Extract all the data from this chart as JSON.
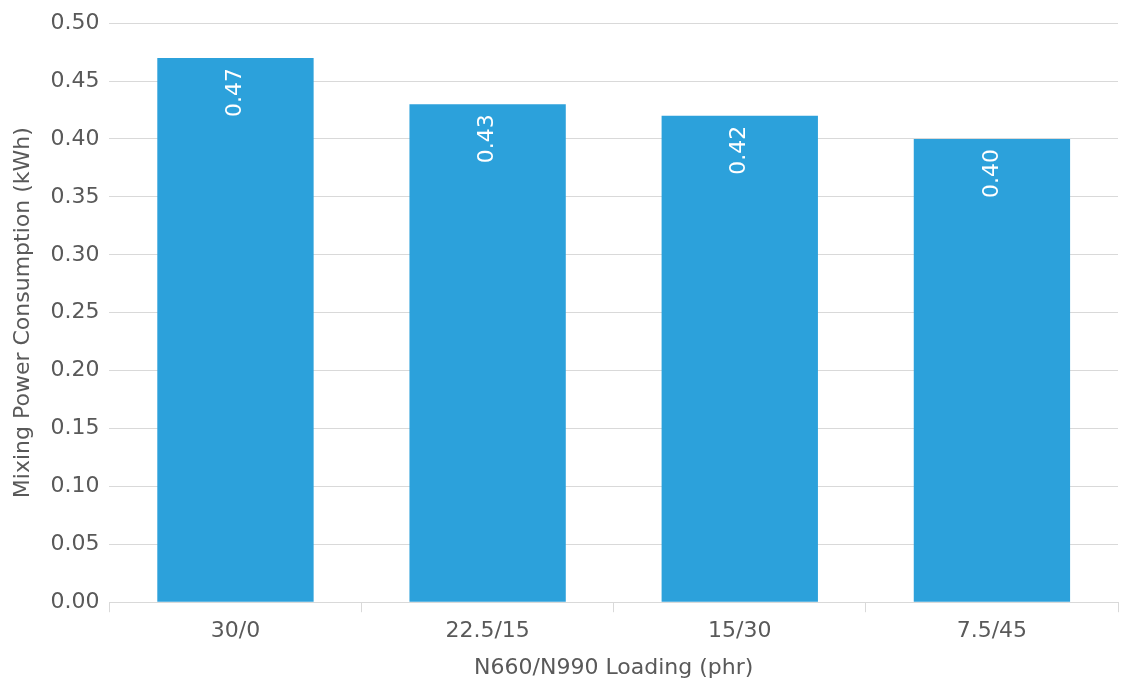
{
  "chart_data": {
    "type": "bar",
    "xlabel": "N660/N990 Loading (phr)",
    "ylabel": "Mixing Power Consumption (kWh)",
    "categories": [
      "30/0",
      "22.5/15",
      "15/30",
      "7.5/45"
    ],
    "values": [
      0.47,
      0.43,
      0.42,
      0.4
    ],
    "value_labels": [
      "0.47",
      "0.43",
      "0.42",
      "0.40"
    ],
    "color": "#2ca1db",
    "ylim": [
      0,
      0.5
    ],
    "yticks": [
      {
        "value": 0,
        "label": "0.00"
      },
      {
        "value": 0.05,
        "label": "0.05"
      },
      {
        "value": 0.1,
        "label": "0.10"
      },
      {
        "value": 0.15,
        "label": "0.15"
      },
      {
        "value": 0.2,
        "label": "0.20"
      },
      {
        "value": 0.25,
        "label": "0.25"
      },
      {
        "value": 0.3,
        "label": "0.30"
      },
      {
        "value": 0.35,
        "label": "0.35"
      },
      {
        "value": 0.4,
        "label": "0.40"
      },
      {
        "value": 0.45,
        "label": "0.45"
      },
      {
        "value": 0.5,
        "label": "0.50"
      }
    ],
    "grid": "y",
    "legend": false
  }
}
